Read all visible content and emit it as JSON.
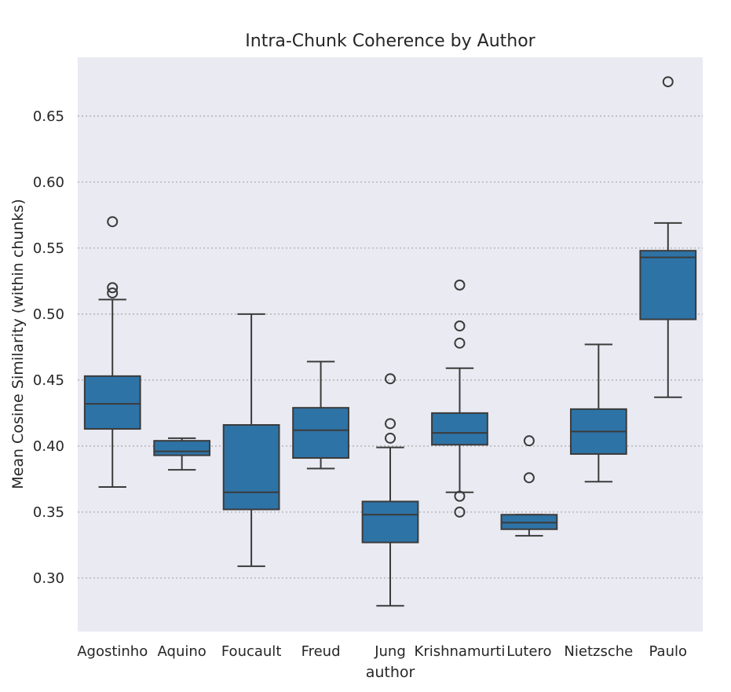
{
  "chart_data": {
    "type": "box",
    "title": "Intra-Chunk Coherence by Author",
    "xlabel": "author",
    "ylabel": "Mean Cosine Similarity (within chunks)",
    "ylim": [
      0.2595,
      0.6945
    ],
    "yticks": [
      0.3,
      0.35,
      0.4,
      0.45,
      0.5,
      0.55,
      0.6,
      0.65
    ],
    "grid": "horizontal-dotted",
    "box_color": "#2e73a6",
    "line_color": "#3b3b3b",
    "plot_background": "#eaeaf2",
    "categories": [
      "Agostinho",
      "Aquino",
      "Foucault",
      "Freud",
      "Jung",
      "Krishnamurti",
      "Lutero",
      "Nietzsche",
      "Paulo"
    ],
    "boxes": [
      {
        "whisker_low": 0.369,
        "q1": 0.413,
        "median": 0.432,
        "q3": 0.453,
        "whisker_high": 0.511,
        "outliers": [
          0.516,
          0.52,
          0.57
        ]
      },
      {
        "whisker_low": 0.382,
        "q1": 0.393,
        "median": 0.396,
        "q3": 0.404,
        "whisker_high": 0.406,
        "outliers": []
      },
      {
        "whisker_low": 0.309,
        "q1": 0.352,
        "median": 0.365,
        "q3": 0.416,
        "whisker_high": 0.5,
        "outliers": []
      },
      {
        "whisker_low": 0.383,
        "q1": 0.391,
        "median": 0.412,
        "q3": 0.429,
        "whisker_high": 0.464,
        "outliers": []
      },
      {
        "whisker_low": 0.279,
        "q1": 0.327,
        "median": 0.348,
        "q3": 0.358,
        "whisker_high": 0.399,
        "outliers": [
          0.406,
          0.417,
          0.451
        ]
      },
      {
        "whisker_low": 0.365,
        "q1": 0.401,
        "median": 0.41,
        "q3": 0.425,
        "whisker_high": 0.459,
        "outliers": [
          0.35,
          0.362,
          0.478,
          0.491,
          0.522
        ]
      },
      {
        "whisker_low": 0.332,
        "q1": 0.337,
        "median": 0.342,
        "q3": 0.348,
        "whisker_high": 0.348,
        "outliers": [
          0.376,
          0.404
        ]
      },
      {
        "whisker_low": 0.373,
        "q1": 0.394,
        "median": 0.411,
        "q3": 0.428,
        "whisker_high": 0.477,
        "outliers": []
      },
      {
        "whisker_low": 0.437,
        "q1": 0.496,
        "median": 0.543,
        "q3": 0.548,
        "whisker_high": 0.569,
        "outliers": [
          0.676
        ]
      }
    ]
  }
}
